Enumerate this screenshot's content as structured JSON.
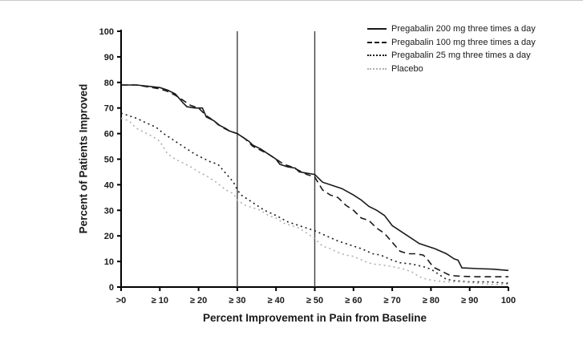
{
  "chart_data": {
    "type": "line",
    "title": "",
    "xlabel": "Percent Improvement in Pain from Baseline",
    "ylabel": "Percent of Patients Improved",
    "xlim": [
      0,
      100
    ],
    "ylim": [
      0,
      100
    ],
    "grid": false,
    "legend_position": "top-right",
    "background_color": "#ffffff",
    "axis_color": "#000000",
    "reference_line_color": "#404040",
    "reference_lines_x": [
      30,
      50
    ],
    "y_ticks": [
      0,
      10,
      20,
      30,
      40,
      50,
      60,
      70,
      80,
      90,
      100
    ],
    "x_tick_values": [
      0,
      10,
      20,
      30,
      40,
      50,
      60,
      70,
      80,
      90,
      100
    ],
    "x_tick_labels": [
      ">0",
      "≥ 10",
      "≥ 20",
      "≥ 30",
      "≥ 40",
      "≥ 50",
      "≥ 60",
      "≥ 70",
      "≥ 80",
      "≥ 90",
      "100"
    ],
    "series": [
      {
        "name": "Pregabalin 200 mg three times a day",
        "style": "solid",
        "color": "#1a1a1a",
        "points": [
          [
            0,
            79
          ],
          [
            4,
            79
          ],
          [
            7,
            78.5
          ],
          [
            10,
            78
          ],
          [
            12,
            77
          ],
          [
            14,
            75.5
          ],
          [
            16,
            72
          ],
          [
            17,
            70.5
          ],
          [
            19,
            70
          ],
          [
            21,
            70
          ],
          [
            22,
            66.5
          ],
          [
            24,
            65
          ],
          [
            25,
            63.5
          ],
          [
            27,
            62
          ],
          [
            28,
            61
          ],
          [
            30,
            60
          ],
          [
            31,
            59
          ],
          [
            33,
            57
          ],
          [
            34,
            55.5
          ],
          [
            36,
            54
          ],
          [
            38,
            52
          ],
          [
            40,
            50
          ],
          [
            41,
            48
          ],
          [
            43,
            47
          ],
          [
            45,
            46.5
          ],
          [
            46,
            45
          ],
          [
            48,
            44.5
          ],
          [
            50,
            44
          ],
          [
            52,
            41
          ],
          [
            54,
            40
          ],
          [
            57,
            38.5
          ],
          [
            60,
            36
          ],
          [
            62,
            34
          ],
          [
            64,
            31.5
          ],
          [
            66,
            30
          ],
          [
            68,
            28
          ],
          [
            70,
            24
          ],
          [
            72,
            22
          ],
          [
            74,
            20
          ],
          [
            77,
            17
          ],
          [
            79,
            16
          ],
          [
            81,
            15
          ],
          [
            84,
            13
          ],
          [
            86,
            11
          ],
          [
            87,
            10.5
          ],
          [
            88,
            7.5
          ],
          [
            92,
            7.2
          ],
          [
            96,
            7
          ],
          [
            100,
            6.5
          ]
        ]
      },
      {
        "name": "Pregabalin 100 mg three times a day",
        "style": "dashed",
        "color": "#1a1a1a",
        "points": [
          [
            0,
            79
          ],
          [
            4,
            79
          ],
          [
            8,
            78
          ],
          [
            10,
            77.5
          ],
          [
            12,
            76.5
          ],
          [
            14,
            75
          ],
          [
            16,
            73
          ],
          [
            18,
            71
          ],
          [
            20,
            70
          ],
          [
            22,
            67
          ],
          [
            24,
            65
          ],
          [
            26,
            62.5
          ],
          [
            28,
            61
          ],
          [
            30,
            60
          ],
          [
            32,
            58
          ],
          [
            34,
            55
          ],
          [
            36,
            53.5
          ],
          [
            38,
            52
          ],
          [
            40,
            50
          ],
          [
            42,
            48
          ],
          [
            44,
            47
          ],
          [
            46,
            45.5
          ],
          [
            48,
            44
          ],
          [
            50,
            43
          ],
          [
            52,
            38
          ],
          [
            54,
            36
          ],
          [
            56,
            35
          ],
          [
            58,
            32
          ],
          [
            60,
            30
          ],
          [
            62,
            27
          ],
          [
            64,
            26
          ],
          [
            66,
            23
          ],
          [
            68,
            21
          ],
          [
            70,
            17.5
          ],
          [
            72,
            14
          ],
          [
            74,
            13
          ],
          [
            76,
            13
          ],
          [
            78,
            12.5
          ],
          [
            79,
            11
          ],
          [
            80,
            9
          ],
          [
            81,
            7.5
          ],
          [
            83,
            6
          ],
          [
            85,
            4.5
          ],
          [
            88,
            4.2
          ],
          [
            92,
            4
          ],
          [
            96,
            4
          ],
          [
            100,
            4
          ]
        ]
      },
      {
        "name": "Pregabalin 25 mg three times a day",
        "style": "dotted",
        "color": "#1a1a1a",
        "points": [
          [
            0,
            68
          ],
          [
            2,
            67
          ],
          [
            4,
            66
          ],
          [
            6,
            64.5
          ],
          [
            9,
            62.5
          ],
          [
            11,
            60
          ],
          [
            13,
            58
          ],
          [
            15,
            56
          ],
          [
            17,
            54
          ],
          [
            19,
            52
          ],
          [
            21,
            50.5
          ],
          [
            23,
            49
          ],
          [
            25,
            48
          ],
          [
            27,
            44.5
          ],
          [
            29,
            41
          ],
          [
            30,
            38
          ],
          [
            31,
            36
          ],
          [
            33,
            34
          ],
          [
            35,
            32
          ],
          [
            37,
            30
          ],
          [
            40,
            28
          ],
          [
            43,
            25.5
          ],
          [
            46,
            24
          ],
          [
            48,
            23
          ],
          [
            50,
            22
          ],
          [
            53,
            20
          ],
          [
            56,
            18
          ],
          [
            59,
            16.5
          ],
          [
            62,
            15
          ],
          [
            65,
            13
          ],
          [
            67,
            12.5
          ],
          [
            70,
            10.5
          ],
          [
            72,
            9.5
          ],
          [
            75,
            9
          ],
          [
            78,
            8
          ],
          [
            80,
            7
          ],
          [
            82,
            5
          ],
          [
            84,
            3
          ],
          [
            86,
            2.5
          ],
          [
            90,
            2
          ],
          [
            95,
            2
          ],
          [
            100,
            1.5
          ]
        ]
      },
      {
        "name": "Placebo",
        "style": "dotted",
        "color": "#b0b0b0",
        "points": [
          [
            0,
            66
          ],
          [
            2,
            65
          ],
          [
            4,
            62
          ],
          [
            6,
            60.5
          ],
          [
            8,
            59
          ],
          [
            10,
            57
          ],
          [
            12,
            52
          ],
          [
            14,
            50
          ],
          [
            16,
            48.5
          ],
          [
            18,
            47
          ],
          [
            20,
            45
          ],
          [
            22,
            43.5
          ],
          [
            25,
            40.5
          ],
          [
            27,
            38
          ],
          [
            29,
            36.5
          ],
          [
            30,
            34
          ],
          [
            32,
            32
          ],
          [
            34,
            31
          ],
          [
            36,
            30
          ],
          [
            38,
            28
          ],
          [
            40,
            27
          ],
          [
            42,
            25
          ],
          [
            44,
            24
          ],
          [
            46,
            23
          ],
          [
            48,
            21
          ],
          [
            50,
            19
          ],
          [
            52,
            16
          ],
          [
            54,
            15
          ],
          [
            56,
            13.5
          ],
          [
            58,
            12.5
          ],
          [
            60,
            12
          ],
          [
            63,
            10
          ],
          [
            65,
            9
          ],
          [
            68,
            8.5
          ],
          [
            70,
            8
          ],
          [
            73,
            7
          ],
          [
            75,
            6
          ],
          [
            77,
            4
          ],
          [
            79,
            3
          ],
          [
            81,
            2.5
          ],
          [
            84,
            2
          ],
          [
            88,
            2
          ],
          [
            92,
            1.5
          ],
          [
            96,
            1
          ],
          [
            100,
            1
          ]
        ]
      }
    ]
  }
}
